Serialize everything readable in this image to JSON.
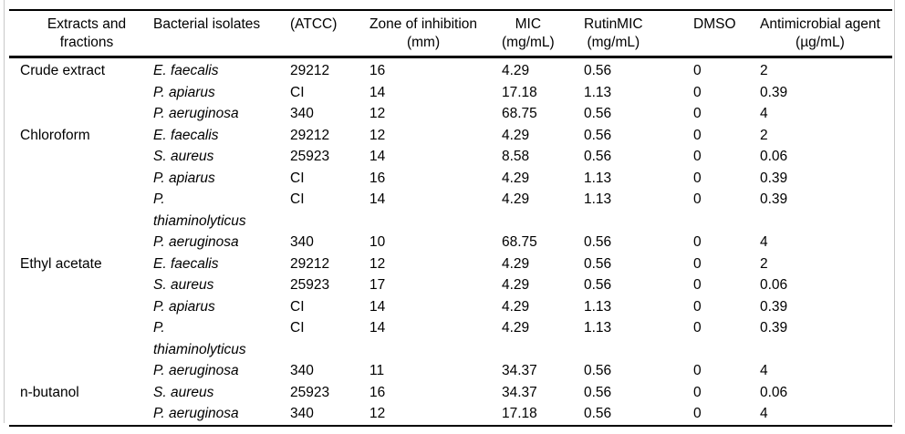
{
  "page": {
    "background_color": "#ffffff",
    "rule_color": "#000000",
    "side_border_color": "#c9c9c9",
    "text_color": "#000000"
  },
  "table": {
    "columns": [
      {
        "id": "extract",
        "label": "Extracts and fractions",
        "unit": ""
      },
      {
        "id": "isolate",
        "label": "Bacterial isolates",
        "unit": ""
      },
      {
        "id": "atcc",
        "label": "(ATCC)",
        "unit": ""
      },
      {
        "id": "zone",
        "label": "Zone of inhibition",
        "unit": "(mm)"
      },
      {
        "id": "mic",
        "label": "MIC",
        "unit": "(mg/mL)"
      },
      {
        "id": "rutin",
        "label": "RutinMIC",
        "unit": "(mg/mL)"
      },
      {
        "id": "dmso",
        "label": "DMSO",
        "unit": ""
      },
      {
        "id": "agent",
        "label": "Antimicrobial agent",
        "unit": "(µg/mL)"
      }
    ],
    "rows": [
      {
        "extract": "Crude extract",
        "isolate": "E. faecalis",
        "atcc": "29212",
        "zone": "16",
        "mic": "4.29",
        "rutin": "0.56",
        "dmso": "0",
        "agent": "2"
      },
      {
        "extract": "",
        "isolate": "P. apiarus",
        "atcc": "CI",
        "zone": "14",
        "mic": "17.18",
        "rutin": "1.13",
        "dmso": "0",
        "agent": "0.39"
      },
      {
        "extract": "",
        "isolate": "P. aeruginosa",
        "atcc": "340",
        "zone": "12",
        "mic": "68.75",
        "rutin": "0.56",
        "dmso": "0",
        "agent": "4"
      },
      {
        "extract": "Chloroform",
        "isolate": "E. faecalis",
        "atcc": "29212",
        "zone": "12",
        "mic": "4.29",
        "rutin": "0.56",
        "dmso": "0",
        "agent": "2"
      },
      {
        "extract": "",
        "isolate": "S. aureus",
        "atcc": "25923",
        "zone": "14",
        "mic": "8.58",
        "rutin": "0.56",
        "dmso": "0",
        "agent": "0.06"
      },
      {
        "extract": "",
        "isolate": "P. apiarus",
        "atcc": "CI",
        "zone": "16",
        "mic": "4.29",
        "rutin": "1.13",
        "dmso": "0",
        "agent": "0.39"
      },
      {
        "extract": "",
        "isolate": "P. thiaminolyticus",
        "atcc": "CI",
        "zone": "14",
        "mic": "4.29",
        "rutin": "1.13",
        "dmso": "0",
        "agent": "0.39"
      },
      {
        "extract": "",
        "isolate": "P. aeruginosa",
        "atcc": "340",
        "zone": "10",
        "mic": "68.75",
        "rutin": "0.56",
        "dmso": "0",
        "agent": "4"
      },
      {
        "extract": "Ethyl acetate",
        "isolate": "E. faecalis",
        "atcc": "29212",
        "zone": "12",
        "mic": "4.29",
        "rutin": "0.56",
        "dmso": "0",
        "agent": "2"
      },
      {
        "extract": "",
        "isolate": "S. aureus",
        "atcc": "25923",
        "zone": "17",
        "mic": "4.29",
        "rutin": "0.56",
        "dmso": "0",
        "agent": "0.06"
      },
      {
        "extract": "",
        "isolate": "P. apiarus",
        "atcc": "CI",
        "zone": "14",
        "mic": "4.29",
        "rutin": "1.13",
        "dmso": "0",
        "agent": "0.39"
      },
      {
        "extract": "",
        "isolate": "P. thiaminolyticus",
        "atcc": "CI",
        "zone": "14",
        "mic": "4.29",
        "rutin": "1.13",
        "dmso": "0",
        "agent": "0.39"
      },
      {
        "extract": "",
        "isolate": "P. aeruginosa",
        "atcc": "340",
        "zone": "11",
        "mic": "34.37",
        "rutin": "0.56",
        "dmso": "0",
        "agent": "4"
      },
      {
        "extract": "n-butanol",
        "isolate": "S. aureus",
        "atcc": "25923",
        "zone": "16",
        "mic": "34.37",
        "rutin": "0.56",
        "dmso": "0",
        "agent": "0.06"
      },
      {
        "extract": "",
        "isolate": "P. aeruginosa",
        "atcc": "340",
        "zone": "12",
        "mic": "17.18",
        "rutin": "0.56",
        "dmso": "0",
        "agent": "4"
      }
    ]
  }
}
